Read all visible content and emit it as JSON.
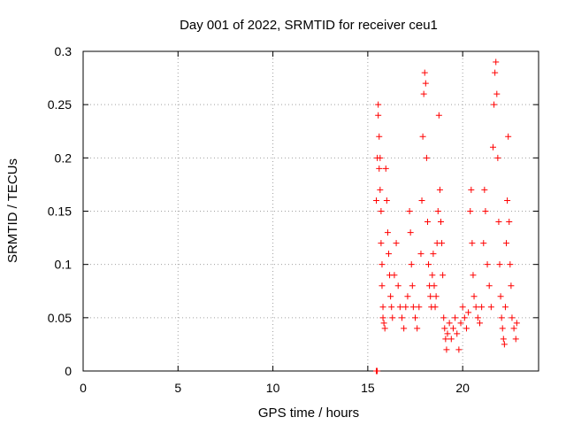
{
  "chart_data": {
    "type": "scatter",
    "title": "Day 001 of 2022, SRMTID for receiver ceu1",
    "xlabel": "GPS time / hours",
    "ylabel": "SRMTID / TECUs",
    "xlim": [
      0,
      24
    ],
    "ylim": [
      0,
      0.3
    ],
    "xticks": [
      0,
      5,
      10,
      15,
      20
    ],
    "xtick_labels": [
      "0",
      "5",
      "10",
      "15",
      "20"
    ],
    "yticks": [
      0,
      0.05,
      0.1,
      0.15,
      0.2,
      0.25,
      0.3
    ],
    "ytick_labels": [
      "0",
      "0.05",
      "0.1",
      "0.15",
      "0.2",
      "0.25",
      "0.3"
    ],
    "grid": true,
    "marker": "+",
    "color": "#ff0000",
    "series": [
      {
        "name": "SRMTID",
        "points": [
          [
            15.45,
            0.0
          ],
          [
            15.5,
            0.0
          ],
          [
            15.45,
            0.16
          ],
          [
            15.5,
            0.2
          ],
          [
            15.55,
            0.24
          ],
          [
            15.55,
            0.25
          ],
          [
            15.6,
            0.22
          ],
          [
            15.6,
            0.19
          ],
          [
            15.65,
            0.2
          ],
          [
            15.65,
            0.17
          ],
          [
            15.7,
            0.15
          ],
          [
            15.7,
            0.12
          ],
          [
            15.75,
            0.1
          ],
          [
            15.75,
            0.08
          ],
          [
            15.8,
            0.06
          ],
          [
            15.8,
            0.05
          ],
          [
            15.85,
            0.045
          ],
          [
            15.9,
            0.04
          ],
          [
            15.95,
            0.19
          ],
          [
            16.0,
            0.16
          ],
          [
            16.05,
            0.13
          ],
          [
            16.1,
            0.11
          ],
          [
            16.15,
            0.09
          ],
          [
            16.2,
            0.07
          ],
          [
            16.25,
            0.06
          ],
          [
            16.3,
            0.05
          ],
          [
            16.4,
            0.09
          ],
          [
            16.5,
            0.12
          ],
          [
            16.6,
            0.08
          ],
          [
            16.7,
            0.06
          ],
          [
            16.8,
            0.05
          ],
          [
            16.9,
            0.04
          ],
          [
            17.0,
            0.06
          ],
          [
            17.1,
            0.07
          ],
          [
            17.2,
            0.15
          ],
          [
            17.25,
            0.13
          ],
          [
            17.3,
            0.1
          ],
          [
            17.35,
            0.08
          ],
          [
            17.4,
            0.06
          ],
          [
            17.5,
            0.05
          ],
          [
            17.6,
            0.04
          ],
          [
            17.7,
            0.06
          ],
          [
            17.8,
            0.11
          ],
          [
            17.85,
            0.16
          ],
          [
            17.9,
            0.22
          ],
          [
            17.95,
            0.26
          ],
          [
            18.0,
            0.28
          ],
          [
            18.05,
            0.27
          ],
          [
            18.1,
            0.2
          ],
          [
            18.15,
            0.14
          ],
          [
            18.2,
            0.1
          ],
          [
            18.25,
            0.08
          ],
          [
            18.3,
            0.07
          ],
          [
            18.35,
            0.06
          ],
          [
            18.4,
            0.09
          ],
          [
            18.45,
            0.11
          ],
          [
            18.5,
            0.08
          ],
          [
            18.55,
            0.06
          ],
          [
            18.6,
            0.07
          ],
          [
            18.65,
            0.12
          ],
          [
            18.7,
            0.15
          ],
          [
            18.75,
            0.24
          ],
          [
            18.8,
            0.17
          ],
          [
            18.85,
            0.14
          ],
          [
            18.9,
            0.12
          ],
          [
            18.95,
            0.09
          ],
          [
            19.0,
            0.05
          ],
          [
            19.05,
            0.04
          ],
          [
            19.1,
            0.03
          ],
          [
            19.15,
            0.02
          ],
          [
            19.2,
            0.035
          ],
          [
            19.3,
            0.045
          ],
          [
            19.4,
            0.03
          ],
          [
            19.5,
            0.04
          ],
          [
            19.6,
            0.05
          ],
          [
            19.7,
            0.035
          ],
          [
            19.8,
            0.02
          ],
          [
            19.9,
            0.045
          ],
          [
            20.0,
            0.06
          ],
          [
            20.1,
            0.05
          ],
          [
            20.2,
            0.04
          ],
          [
            20.3,
            0.055
          ],
          [
            20.4,
            0.15
          ],
          [
            20.45,
            0.17
          ],
          [
            20.5,
            0.12
          ],
          [
            20.55,
            0.09
          ],
          [
            20.6,
            0.07
          ],
          [
            20.7,
            0.06
          ],
          [
            20.8,
            0.05
          ],
          [
            20.9,
            0.045
          ],
          [
            21.0,
            0.06
          ],
          [
            21.1,
            0.12
          ],
          [
            21.15,
            0.17
          ],
          [
            21.2,
            0.15
          ],
          [
            21.3,
            0.1
          ],
          [
            21.4,
            0.08
          ],
          [
            21.5,
            0.06
          ],
          [
            21.6,
            0.21
          ],
          [
            21.65,
            0.25
          ],
          [
            21.7,
            0.28
          ],
          [
            21.75,
            0.29
          ],
          [
            21.8,
            0.26
          ],
          [
            21.85,
            0.2
          ],
          [
            21.9,
            0.14
          ],
          [
            21.95,
            0.1
          ],
          [
            22.0,
            0.07
          ],
          [
            22.05,
            0.05
          ],
          [
            22.1,
            0.04
          ],
          [
            22.15,
            0.03
          ],
          [
            22.2,
            0.025
          ],
          [
            22.25,
            0.06
          ],
          [
            22.3,
            0.12
          ],
          [
            22.35,
            0.16
          ],
          [
            22.4,
            0.22
          ],
          [
            22.45,
            0.14
          ],
          [
            22.5,
            0.1
          ],
          [
            22.55,
            0.08
          ],
          [
            22.6,
            0.05
          ],
          [
            22.7,
            0.04
          ],
          [
            22.8,
            0.03
          ],
          [
            22.85,
            0.045
          ]
        ]
      }
    ]
  }
}
